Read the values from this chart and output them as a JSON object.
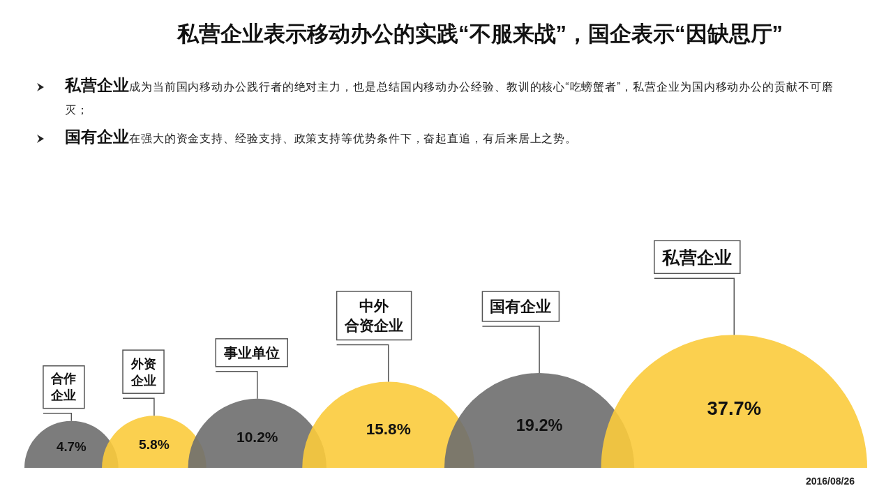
{
  "chart_data": {
    "type": "other",
    "title": "私营企业表示移动办公的实践“不服来战”，国企表示“因缺思厅”",
    "annotations": [
      "私营企业成为当前国内移动办公践行者的绝对主力，也是总结国内移动办公经验、教训的核心“吃螃蟹者”，私营企业为国内移动办公的贡献不可磨灭；",
      "国有企业在强大的资金支持、经验支持、政策支持等优势条件下，奋起直追，有后来居上之势。",
      "2016/08/26"
    ],
    "categories": [
      "合作企业",
      "外资企业",
      "事业单位",
      "中外合资企业",
      "国有企业",
      "私营企业"
    ],
    "values": [
      4.7,
      5.8,
      10.2,
      15.8,
      19.2,
      37.7
    ],
    "value_labels": [
      "4.7%",
      "5.8%",
      "10.2%",
      "15.8%",
      "19.2%",
      "37.7%"
    ],
    "colors": [
      "#6e6e6e",
      "#fbcb3c",
      "#6e6e6e",
      "#fbcb3c",
      "#6e6e6e",
      "#fbcb3c"
    ]
  }
}
